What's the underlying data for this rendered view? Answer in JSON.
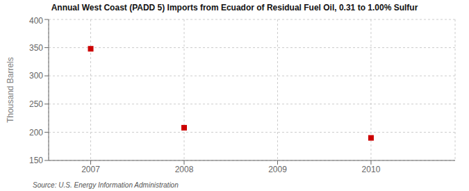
{
  "chart_data": {
    "type": "scatter",
    "title": "Annual West Coast (PADD 5) Imports from Ecuador of Residual Fuel Oil, 0.31 to 1.00% Sulfur",
    "ylabel": "Thousand Barrels",
    "source": "Source: U.S. Energy Information Administration",
    "x": [
      2007,
      2008,
      2010
    ],
    "values": [
      348,
      208,
      190
    ],
    "xlim": [
      2006.55,
      2010.9
    ],
    "ylim": [
      150,
      400
    ],
    "xticks": [
      2007,
      2008,
      2009,
      2010
    ],
    "yticks": [
      150,
      200,
      250,
      300,
      350,
      400
    ],
    "color": "#cc0000",
    "marker": "square",
    "grid": true
  }
}
